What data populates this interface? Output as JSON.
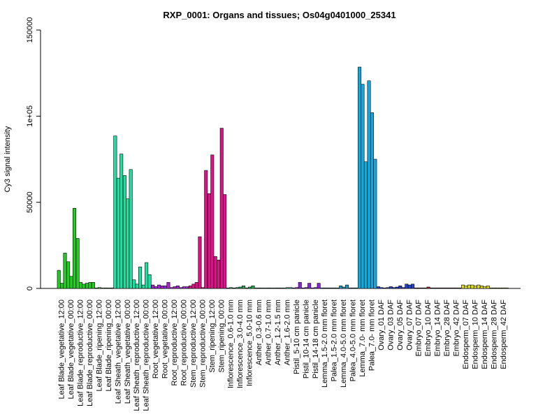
{
  "chart_data": {
    "type": "bar",
    "title": "RXP_0001: Organs and tissues; Os04g0401000_25341",
    "xlabel": "",
    "ylabel": "Cy3 signal intensity",
    "ylim": [
      0,
      150000
    ],
    "yticks": [
      {
        "value": 0,
        "label": "0"
      },
      {
        "value": 50000,
        "label": "50000"
      },
      {
        "value": 100000,
        "label": "1e+05"
      },
      {
        "value": 150000,
        "label": "150000"
      }
    ],
    "grid": false,
    "legend": "none",
    "categories": [
      "Leaf Blade_vegetative_12:00",
      "Leaf Blade_vegetative_00:00",
      "Leaf Blade_reproductive_12:00",
      "Leaf Blade_reproductive_00:00",
      "Leaf Blade_ripening_12:00",
      "Leaf Blade_ripening_00:00",
      "Leaf Sheath_vegetative_12:00",
      "Leaf Sheath_vegetative_00:00",
      "Leaf Sheath_reproductive_12:00",
      "Leaf Sheath_reproductive_00:00",
      "Root_vegetative_12:00",
      "Root_vegetative_00:00",
      "Root_reproductive_12:00",
      "Root_reproductive_00:00",
      "Stem_reproductive_12:00",
      "Stem_reproductive_00:00",
      "Stem_ripening_12:00",
      "Stem_ripening_00:00",
      "Inflorescence_0.6-1.0 mm",
      "Inflorescence_3.0-4.0 mm",
      "Inflorescence_5.0-10 mm",
      "Anther_0.3-0.6 mm",
      "Anther_0.7-1.0 mm",
      "Anther_1.2-1.5 mm",
      "Anther_1.6-2.0 mm",
      "Pistil_5-10 cm panicle",
      "Pistil_10-14 cm panicle",
      "Pistil_14-18 cm panicle",
      "Lemma_1.5-2.0 mm floret",
      "Palea_1.5-2.0 mm floret",
      "Lemma_4.0-5.0 mm floret",
      "Palea_4.0-5.0 mm floret",
      "Lemma_7.0- mm floret",
      "Palea_7.0- mm floret",
      "Ovary_01 DAF",
      "Ovary_03 DAF",
      "Ovary_05 DAF",
      "Ovary_07 DAF",
      "Embryo_07 DAF",
      "Embryo_10 DAF",
      "Embryo_14 DAF",
      "Embryo_28 DAF",
      "Embryo_42 DAF",
      "Endosperm_07 DAF",
      "Endosperm_10 DAF",
      "Endosperm_14 DAF",
      "Endosperm_28 DAF",
      "Endosperm_42 DAF"
    ],
    "values": [
      [
        10500,
        3000,
        20500
      ],
      [
        15500,
        7000,
        46500
      ],
      [
        29000,
        3500,
        2500
      ],
      [
        3000,
        3500,
        3500
      ],
      [
        300,
        500,
        200
      ],
      [
        300,
        200,
        300
      ],
      [
        88500,
        64000,
        78000
      ],
      [
        65500,
        52000,
        69000
      ],
      [
        5000,
        2500,
        12500
      ],
      [
        2000,
        15000,
        8000
      ],
      [
        2000,
        1000,
        2000
      ],
      [
        1500,
        1500,
        3500
      ],
      [
        500,
        1000,
        1500
      ],
      [
        500,
        1000,
        1000
      ],
      [
        1500,
        2500,
        3500
      ],
      [
        30000,
        500,
        68500
      ],
      [
        55000,
        77500,
        18500
      ],
      [
        16500,
        93000,
        54500
      ],
      [
        300,
        500,
        300
      ],
      [
        500,
        800,
        1500
      ],
      [
        300,
        800,
        1500
      ],
      [
        200,
        300,
        200
      ],
      [
        200,
        300,
        200
      ],
      [
        200,
        300,
        200
      ],
      [
        300,
        500,
        500
      ],
      [
        300,
        500,
        3500
      ],
      [
        300,
        500,
        3000
      ],
      [
        300,
        500,
        3000
      ],
      [
        300,
        300,
        300
      ],
      [
        300,
        300,
        300
      ],
      [
        1500,
        800,
        2000
      ],
      [
        300,
        300,
        300
      ],
      [
        128500,
        118500,
        73500
      ],
      [
        120500,
        102000,
        75000
      ],
      [
        1000,
        500,
        300
      ],
      [
        500,
        1000,
        500
      ],
      [
        800,
        1500,
        500
      ],
      [
        2500,
        2000,
        2500
      ],
      [
        300,
        300,
        300
      ],
      [
        300,
        800,
        300
      ],
      [
        300,
        300,
        300
      ],
      [
        300,
        300,
        300
      ],
      [
        300,
        300,
        300
      ],
      [
        2000,
        1500,
        2000
      ],
      [
        2000,
        1500,
        2000
      ],
      [
        1500,
        1000,
        1500
      ],
      [
        300,
        300,
        300
      ],
      [
        300,
        300,
        300
      ]
    ],
    "colors": [
      "#22cc22",
      "#22cc22",
      "#22cc22",
      "#22cc22",
      "#22cc22",
      "#22cc22",
      "#22dda0",
      "#22dda0",
      "#22dda0",
      "#22dda0",
      "#aa22dd",
      "#aa22dd",
      "#aa22dd",
      "#aa22dd",
      "#dd1188",
      "#dd1188",
      "#dd1188",
      "#dd1188",
      "#22aa55",
      "#22aa55",
      "#22aa55",
      "#22bb99",
      "#22bb99",
      "#22bb99",
      "#22bb99",
      "#8822dd",
      "#8822dd",
      "#8822dd",
      "#2299bb",
      "#2299bb",
      "#2299bb",
      "#2299bb",
      "#11aadd",
      "#11aadd",
      "#2244cc",
      "#2244cc",
      "#2244cc",
      "#2244cc",
      "#aa2222",
      "#aa2222",
      "#aa2222",
      "#aa2222",
      "#aa2222",
      "#dddd22",
      "#dddd22",
      "#dddd22",
      "#dddd22",
      "#dddd22"
    ]
  }
}
